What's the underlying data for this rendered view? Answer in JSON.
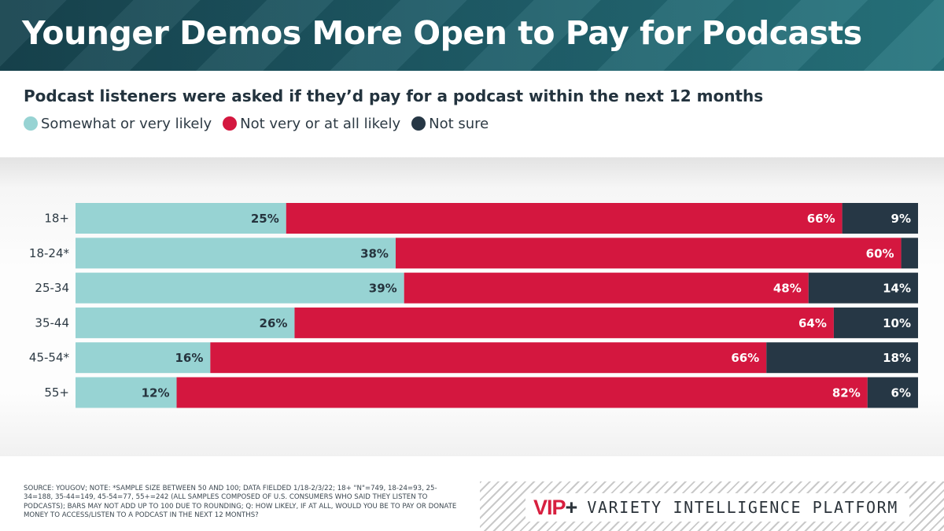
{
  "header": {
    "title": "Younger Demos More Open to Pay for Podcasts"
  },
  "colors": {
    "likely": "#97d3d3",
    "not_likely": "#d4173f",
    "not_sure": "#263745"
  },
  "chart_data": {
    "type": "bar",
    "orientation": "horizontal",
    "stacked": true,
    "title": "Podcast listeners were asked if they’d pay for a podcast within the next 12 months",
    "categories": [
      "18+",
      "18-24*",
      "25-34",
      "35-44",
      "45-54*",
      "55+"
    ],
    "series": [
      {
        "name": "Somewhat or very likely",
        "values": [
          25,
          38,
          39,
          26,
          16,
          12
        ],
        "labels": [
          "25%",
          "38%",
          "39%",
          "26%",
          "16%",
          "12%"
        ]
      },
      {
        "name": "Not very or at all likely",
        "values": [
          66,
          60,
          48,
          64,
          66,
          82
        ],
        "labels": [
          "66%",
          "60%",
          "48%",
          "64%",
          "66%",
          "82%"
        ]
      },
      {
        "name": "Not sure",
        "values": [
          9,
          2,
          14,
          10,
          18,
          6
        ],
        "labels": [
          "9%",
          "",
          "14%",
          "10%",
          "18%",
          "6%"
        ]
      }
    ],
    "xlim": [
      0,
      100
    ],
    "legend": "top-left"
  },
  "footer": {
    "note": "Source: YouGov; Note: *Sample size between 50 and 100; data fielded 1/18-2/3/22; 18+ \"N\"=749, 18-24=93, 25-34=188, 35-44=149, 45-54=77, 55+=242 (all samples composed of U.S. consumers who said they listen to podcasts); bars may not add up to 100 due to rounding; Q: How likely, if at all, would you be to pay or donate money to access/listen to a podcast in the next 12 months?",
    "brand_logo": "VIP",
    "brand_plus": "+",
    "brand_name": "VARIETY INTELLIGENCE PLATFORM"
  }
}
